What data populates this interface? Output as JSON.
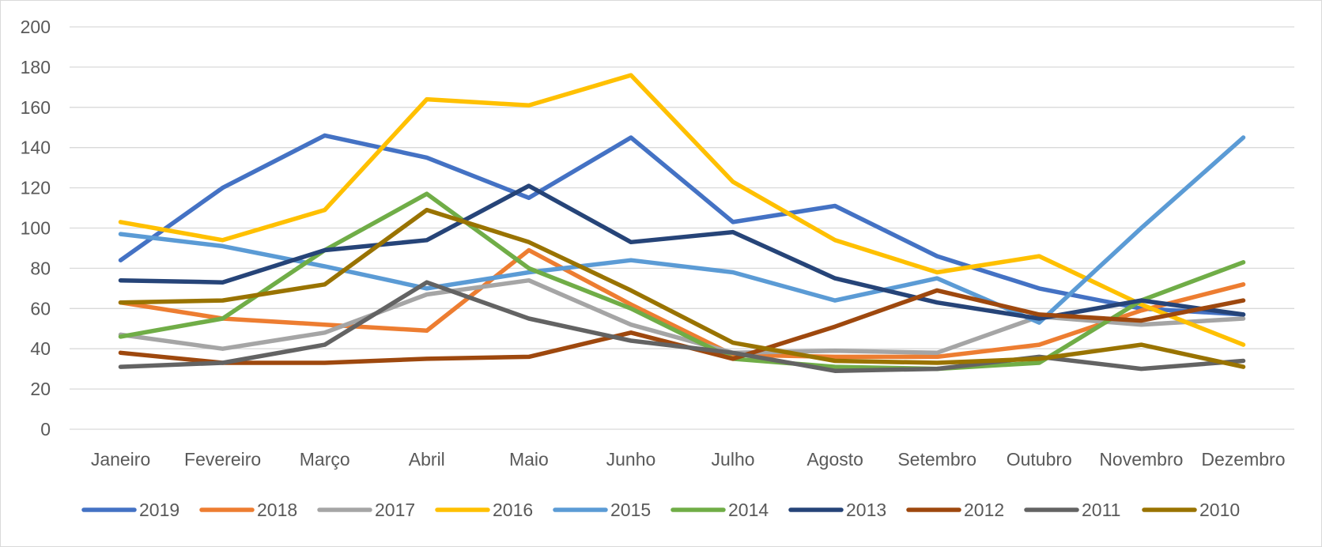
{
  "chart_data": {
    "type": "line",
    "title": "",
    "xlabel": "",
    "ylabel": "",
    "categories": [
      "Janeiro",
      "Fevereiro",
      "Março",
      "Abril",
      "Maio",
      "Junho",
      "Julho",
      "Agosto",
      "Setembro",
      "Outubro",
      "Novembro",
      "Dezembro"
    ],
    "ylim": [
      0,
      200
    ],
    "yticks": [
      0,
      20,
      40,
      60,
      80,
      100,
      120,
      140,
      160,
      180,
      200
    ],
    "grid": true,
    "legend_position": "bottom",
    "series": [
      {
        "name": "2019",
        "color": "#4472C4",
        "values": [
          84,
          120,
          146,
          135,
          115,
          145,
          103,
          111,
          86,
          70,
          60,
          57
        ]
      },
      {
        "name": "2018",
        "color": "#ED7D31",
        "values": [
          63,
          55,
          52,
          49,
          89,
          62,
          37,
          36,
          36,
          42,
          59,
          72
        ]
      },
      {
        "name": "2017",
        "color": "#A5A5A5",
        "values": [
          47,
          40,
          48,
          67,
          74,
          52,
          38,
          39,
          38,
          56,
          52,
          55
        ]
      },
      {
        "name": "2016",
        "color": "#FFC000",
        "values": [
          103,
          94,
          109,
          164,
          161,
          176,
          123,
          94,
          78,
          86,
          62,
          42
        ]
      },
      {
        "name": "2015",
        "color": "#5B9BD5",
        "values": [
          97,
          91,
          81,
          70,
          78,
          84,
          78,
          64,
          75,
          53,
          100,
          145
        ]
      },
      {
        "name": "2014",
        "color": "#70AD47",
        "values": [
          46,
          55,
          89,
          117,
          80,
          60,
          35,
          31,
          30,
          33,
          64,
          83
        ]
      },
      {
        "name": "2013",
        "color": "#264478",
        "values": [
          74,
          73,
          89,
          94,
          121,
          93,
          98,
          75,
          63,
          55,
          64,
          57
        ]
      },
      {
        "name": "2012",
        "color": "#9E480E",
        "values": [
          38,
          33,
          33,
          35,
          36,
          48,
          35,
          51,
          69,
          57,
          54,
          64
        ]
      },
      {
        "name": "2011",
        "color": "#636363",
        "values": [
          31,
          33,
          42,
          73,
          55,
          44,
          38,
          29,
          30,
          36,
          30,
          34
        ]
      },
      {
        "name": "2010",
        "color": "#997300",
        "values": [
          63,
          64,
          72,
          109,
          93,
          69,
          43,
          34,
          33,
          35,
          42,
          31
        ]
      }
    ]
  }
}
